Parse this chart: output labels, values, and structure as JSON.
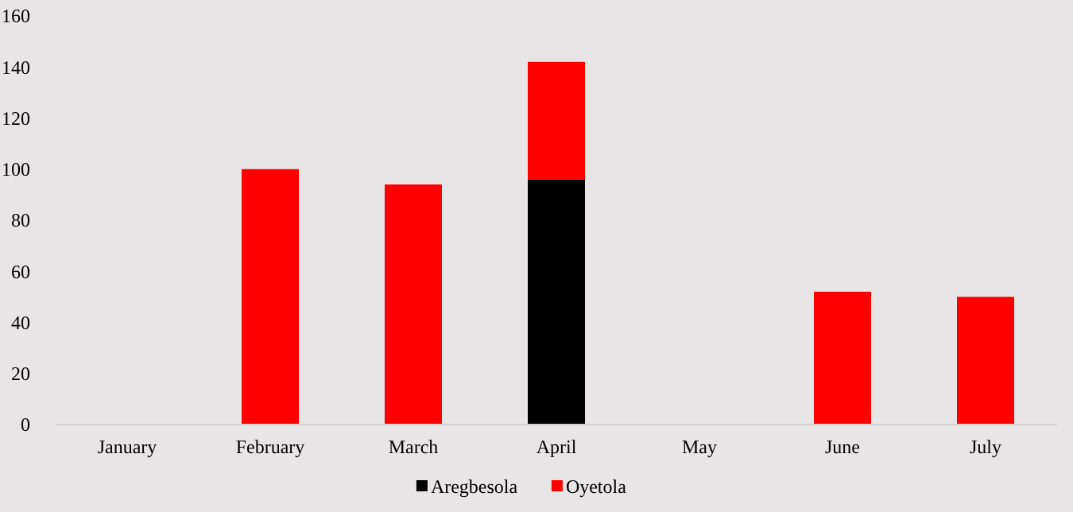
{
  "chart_data": {
    "type": "bar",
    "stacked": true,
    "categories": [
      "January",
      "February",
      "March",
      "April",
      "May",
      "June",
      "July"
    ],
    "series": [
      {
        "name": "Aregbesola",
        "color": "#000000",
        "values": [
          null,
          null,
          null,
          96,
          null,
          null,
          null
        ]
      },
      {
        "name": "Oyetola",
        "color": "#ff0000",
        "values": [
          null,
          100,
          94,
          46,
          null,
          52,
          50
        ]
      }
    ],
    "ylim": [
      0,
      160
    ],
    "yticks": [
      0,
      20,
      40,
      60,
      80,
      100,
      120,
      140,
      160
    ],
    "grid": false,
    "legend": "bottom"
  }
}
